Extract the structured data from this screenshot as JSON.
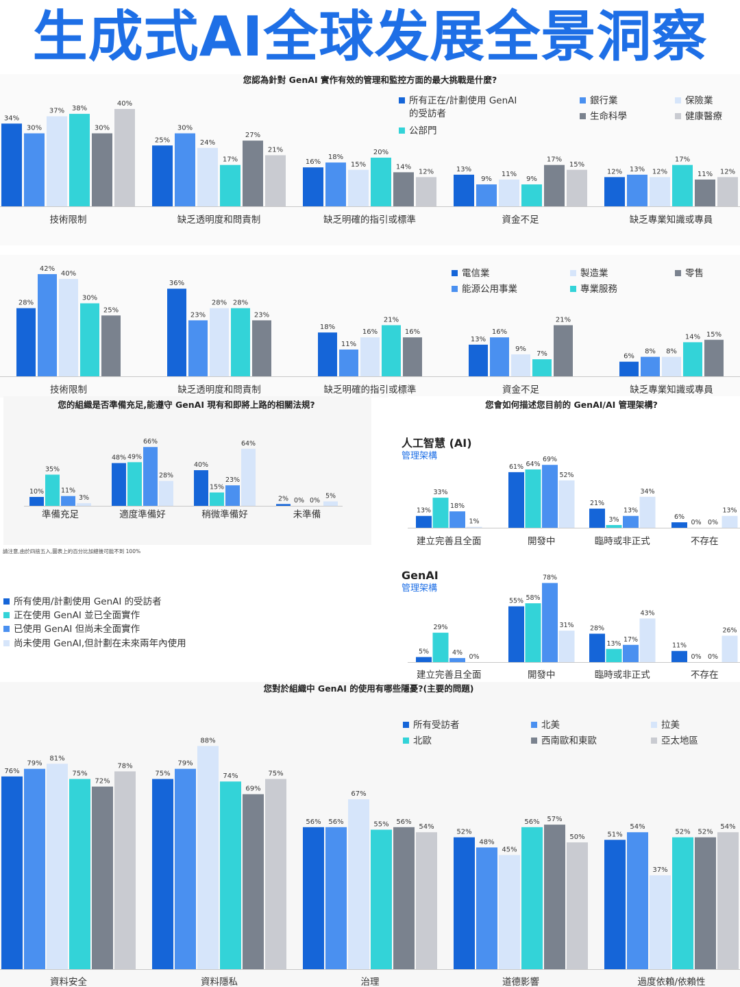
{
  "banner": {
    "title": "生成式AI全球发展全景洞察"
  },
  "colors": {
    "c1": "#1565d8",
    "c2": "#4a90f0",
    "c3": "#d6e5fa",
    "c4": "#33d3d8",
    "c5": "#7a828e",
    "c6": "#c9cbd1"
  },
  "chart_data": [
    {
      "id": "challenges_a",
      "type": "bar",
      "title": "您認為針對 GenAI 實作有效的管理和監控方面的最大挑戰是什麼?",
      "categories": [
        "技術限制",
        "缺乏透明度和問責制",
        "缺乏明確的指引或標準",
        "資金不足",
        "缺乏專業知識或專員"
      ],
      "series": [
        {
          "name": "所有正在/計劃使用 GenAI 的受訪者",
          "values": [
            34,
            25,
            16,
            13,
            12
          ]
        },
        {
          "name": "銀行業",
          "values": [
            30,
            30,
            18,
            9,
            13
          ]
        },
        {
          "name": "保險業",
          "values": [
            37,
            24,
            15,
            11,
            12
          ]
        },
        {
          "name": "公部門",
          "values": [
            38,
            17,
            20,
            9,
            17
          ]
        },
        {
          "name": "生命科學",
          "values": [
            30,
            27,
            14,
            17,
            11
          ]
        },
        {
          "name": "健康醫療",
          "values": [
            40,
            21,
            12,
            15,
            12
          ]
        }
      ],
      "ylim": [
        0,
        50
      ]
    },
    {
      "id": "challenges_b",
      "type": "bar",
      "categories": [
        "技術限制",
        "缺乏透明度和問責制",
        "缺乏明確的指引或標準",
        "資金不足",
        "缺乏專業知識或專員"
      ],
      "series": [
        {
          "name": "電信業",
          "values": [
            28,
            36,
            18,
            13,
            6
          ]
        },
        {
          "name": "能源公用事業",
          "values": [
            42,
            23,
            11,
            16,
            8
          ]
        },
        {
          "name": "製造業",
          "values": [
            40,
            28,
            16,
            9,
            8
          ]
        },
        {
          "name": "專業服務",
          "values": [
            30,
            28,
            21,
            7,
            14
          ]
        },
        {
          "name": "零售",
          "values": [
            25,
            23,
            16,
            21,
            15
          ]
        }
      ],
      "ylim": [
        0,
        50
      ]
    },
    {
      "id": "compliance",
      "type": "bar",
      "title": "您的組織是否準備充足,能遵守 GenAI 現有和即將上路的相關法規?",
      "categories": [
        "準備充足",
        "適度準備好",
        "稍微準備好",
        "未準備"
      ],
      "series": [
        {
          "name": "所有使用/計劃使用 GenAI 的受訪者",
          "values": [
            10,
            48,
            40,
            2
          ]
        },
        {
          "name": "正在使用 GenAI 並已全面實作",
          "values": [
            35,
            49,
            15,
            0
          ]
        },
        {
          "name": "已使用 GenAI 但尚未全面實作",
          "values": [
            11,
            66,
            23,
            0
          ]
        },
        {
          "name": "尚未使用 GenAI,但計劃在未來兩年內使用",
          "values": [
            3,
            28,
            64,
            5
          ]
        }
      ],
      "note": "請注意,由於四捨五入,圖表上的百分比加總後可能不到 100%",
      "ylim": [
        0,
        80
      ]
    },
    {
      "id": "arch_ai",
      "type": "bar",
      "title": "您會如何描述您目前的 GenAI/AI 管理架構?",
      "subtitle_main": "人工智慧 (AI)",
      "subtitle_sub": "管理架構",
      "categories": [
        "建立完善且全面",
        "開發中",
        "臨時或非正式",
        "不存在"
      ],
      "series": [
        {
          "values": [
            13,
            61,
            21,
            6
          ]
        },
        {
          "values": [
            33,
            64,
            3,
            0
          ]
        },
        {
          "values": [
            18,
            69,
            13,
            0
          ]
        },
        {
          "values": [
            1,
            52,
            34,
            13
          ]
        }
      ],
      "ylim": [
        0,
        80
      ]
    },
    {
      "id": "arch_genai",
      "type": "bar",
      "subtitle_main": "GenAI",
      "subtitle_sub": "管理架構",
      "categories": [
        "建立完善且全面",
        "開發中",
        "臨時或非正式",
        "不存在"
      ],
      "series": [
        {
          "values": [
            5,
            55,
            28,
            11
          ]
        },
        {
          "values": [
            29,
            58,
            13,
            0
          ]
        },
        {
          "values": [
            4,
            78,
            17,
            0
          ]
        },
        {
          "values": [
            0,
            31,
            43,
            26
          ]
        }
      ],
      "ylim": [
        0,
        80
      ]
    },
    {
      "id": "concerns",
      "type": "bar",
      "title": "您對於組織中 GenAI 的使用有哪些隱憂?(主要的問題)",
      "categories": [
        "資料安全",
        "資料隱私",
        "治理",
        "道德影響",
        "過度依賴/依賴性"
      ],
      "series": [
        {
          "name": "所有受訪者",
          "values": [
            76,
            75,
            56,
            52,
            51
          ]
        },
        {
          "name": "北美",
          "values": [
            79,
            79,
            56,
            48,
            54
          ]
        },
        {
          "name": "拉美",
          "values": [
            81,
            88,
            67,
            45,
            37
          ]
        },
        {
          "name": "北歐",
          "values": [
            75,
            74,
            55,
            56,
            52
          ]
        },
        {
          "name": "西南歐和東歐",
          "values": [
            72,
            69,
            56,
            57,
            52
          ]
        },
        {
          "name": "亞太地區",
          "values": [
            78,
            75,
            54,
            50,
            54
          ]
        }
      ],
      "ylim": [
        0,
        100
      ]
    }
  ]
}
